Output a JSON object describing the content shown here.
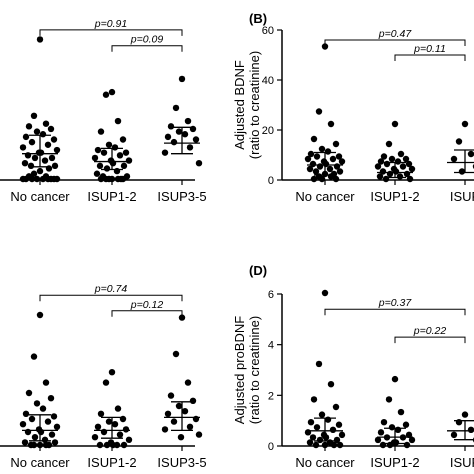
{
  "chart_data": [
    {
      "panel": "",
      "type": "scatter",
      "categories": [
        "No cancer",
        "ISUP1-2",
        "ISUP3-5"
      ],
      "ylabel": "",
      "ylim": [
        0,
        60
      ],
      "yticks": [],
      "points": [
        [
          53,
          24,
          21,
          20,
          19,
          18,
          17,
          16,
          15,
          14,
          13,
          12,
          11,
          10,
          10,
          9,
          8,
          8,
          7,
          6,
          5,
          5,
          4,
          3,
          2,
          1,
          1,
          0,
          0,
          0,
          0,
          0,
          0,
          0,
          0,
          0
        ],
        [
          33,
          32,
          22,
          18,
          15,
          13,
          12,
          11,
          10,
          10,
          9,
          8,
          7,
          7,
          6,
          5,
          5,
          4,
          3,
          2,
          1,
          1,
          0,
          0,
          0,
          0,
          0,
          0,
          0
        ],
        [
          38,
          27,
          22,
          20,
          19,
          18,
          17,
          16,
          15,
          14,
          12,
          10,
          6
        ]
      ],
      "summary": [
        {
          "median": 10,
          "lower": 5,
          "upper": 17
        },
        {
          "median": 7,
          "lower": 4,
          "upper": 12
        },
        {
          "median": 14,
          "lower": 10,
          "upper": 20
        }
      ],
      "comparisons": [
        {
          "from": 0,
          "to": 2,
          "label": "p=0.91",
          "value": 57
        },
        {
          "from": 1,
          "to": 2,
          "label": "p=0.09",
          "value": 51
        }
      ]
    },
    {
      "panel": "(B)",
      "type": "scatter",
      "categories": [
        "No cancer",
        "ISUP1-2",
        "ISUP"
      ],
      "ylabel": "Adjusted BDNF (ratio to creatinine)",
      "ylim": [
        0,
        60
      ],
      "yticks": [
        0,
        20,
        40,
        60
      ],
      "points": [
        [
          53,
          27,
          22,
          16,
          14,
          12,
          11,
          10,
          9,
          9,
          8,
          8,
          7,
          7,
          6,
          6,
          5,
          5,
          4,
          4,
          3,
          3,
          2,
          2,
          1,
          1,
          0,
          0,
          0
        ],
        [
          22,
          14,
          10,
          9,
          8,
          8,
          7,
          7,
          6,
          6,
          5,
          5,
          4,
          4,
          3,
          3,
          2,
          2,
          1,
          1,
          0,
          0
        ],
        [
          22,
          15,
          10,
          8,
          5,
          3
        ]
      ],
      "summary": [
        {
          "median": 6,
          "lower": 2,
          "upper": 11
        },
        {
          "median": 3,
          "lower": 1,
          "upper": 7
        },
        {
          "median": 7,
          "lower": 3,
          "upper": 12
        }
      ],
      "comparisons": [
        {
          "from": 0,
          "to": 2,
          "label": "p=0.47",
          "value": 56
        },
        {
          "from": 1,
          "to": 2,
          "label": "p=0.11",
          "value": 50
        }
      ]
    },
    {
      "panel": "",
      "type": "scatter",
      "categories": [
        "No cancer",
        "ISUP1-2",
        "ISUP3-5"
      ],
      "ylabel": "",
      "ylim": [
        0,
        6
      ],
      "yticks": [],
      "points": [
        [
          5.0,
          3.4,
          2.4,
          2.0,
          1.8,
          1.6,
          1.4,
          1.2,
          1.1,
          1.0,
          0.9,
          0.8,
          0.7,
          0.6,
          0.5,
          0.5,
          0.4,
          0.3,
          0.2,
          0.1,
          0.1,
          0.0,
          0.0,
          0.0,
          0.0,
          0.0
        ],
        [
          2.8,
          2.4,
          1.4,
          1.2,
          1.0,
          0.9,
          0.8,
          0.7,
          0.6,
          0.5,
          0.4,
          0.3,
          0.2,
          0.1,
          0.0,
          0.0,
          0.0,
          0.0,
          0.0
        ],
        [
          4.9,
          3.5,
          2.4,
          1.9,
          1.7,
          1.5,
          1.3,
          1.2,
          1.0,
          0.9,
          0.7,
          0.6,
          0.4,
          0.3
        ]
      ],
      "summary": [
        {
          "median": 0.6,
          "lower": 0.2,
          "upper": 1.2
        },
        {
          "median": 0.6,
          "lower": 0.3,
          "upper": 1.1
        },
        {
          "median": 1.1,
          "lower": 0.6,
          "upper": 1.7
        }
      ],
      "comparisons": [
        {
          "from": 0,
          "to": 2,
          "label": "p=0.74",
          "value": 5.8
        },
        {
          "from": 1,
          "to": 2,
          "label": "p=0.12",
          "value": 5.2
        }
      ]
    },
    {
      "panel": "(D)",
      "type": "scatter",
      "categories": [
        "No cancer",
        "ISUP1-2",
        "ISUP"
      ],
      "ylabel": "Adjusted proBDNF (ratio to creatinine)",
      "ylim": [
        0,
        6
      ],
      "yticks": [
        0,
        2,
        4,
        6
      ],
      "points": [
        [
          6.0,
          3.2,
          2.4,
          1.8,
          1.5,
          1.2,
          1.0,
          0.9,
          0.8,
          0.7,
          0.6,
          0.5,
          0.4,
          0.4,
          0.3,
          0.3,
          0.2,
          0.2,
          0.1,
          0.1,
          0.0,
          0.0,
          0.0,
          0.0
        ],
        [
          2.6,
          1.8,
          1.3,
          0.9,
          0.8,
          0.7,
          0.6,
          0.5,
          0.4,
          0.3,
          0.3,
          0.2,
          0.2,
          0.1,
          0.1,
          0.0,
          0.0,
          0.0
        ],
        [
          1.2,
          0.9,
          0.6,
          0.4,
          0.2
        ]
      ],
      "summary": [
        {
          "median": 0.6,
          "lower": 0.2,
          "upper": 1.1
        },
        {
          "median": 0.35,
          "lower": 0.1,
          "upper": 0.7
        },
        {
          "median": 0.6,
          "lower": 0.25,
          "upper": 1.0
        }
      ],
      "comparisons": [
        {
          "from": 0,
          "to": 2,
          "label": "p=0.37",
          "value": 5.4
        },
        {
          "from": 1,
          "to": 2,
          "label": "p=0.22",
          "value": 4.3
        }
      ]
    }
  ]
}
